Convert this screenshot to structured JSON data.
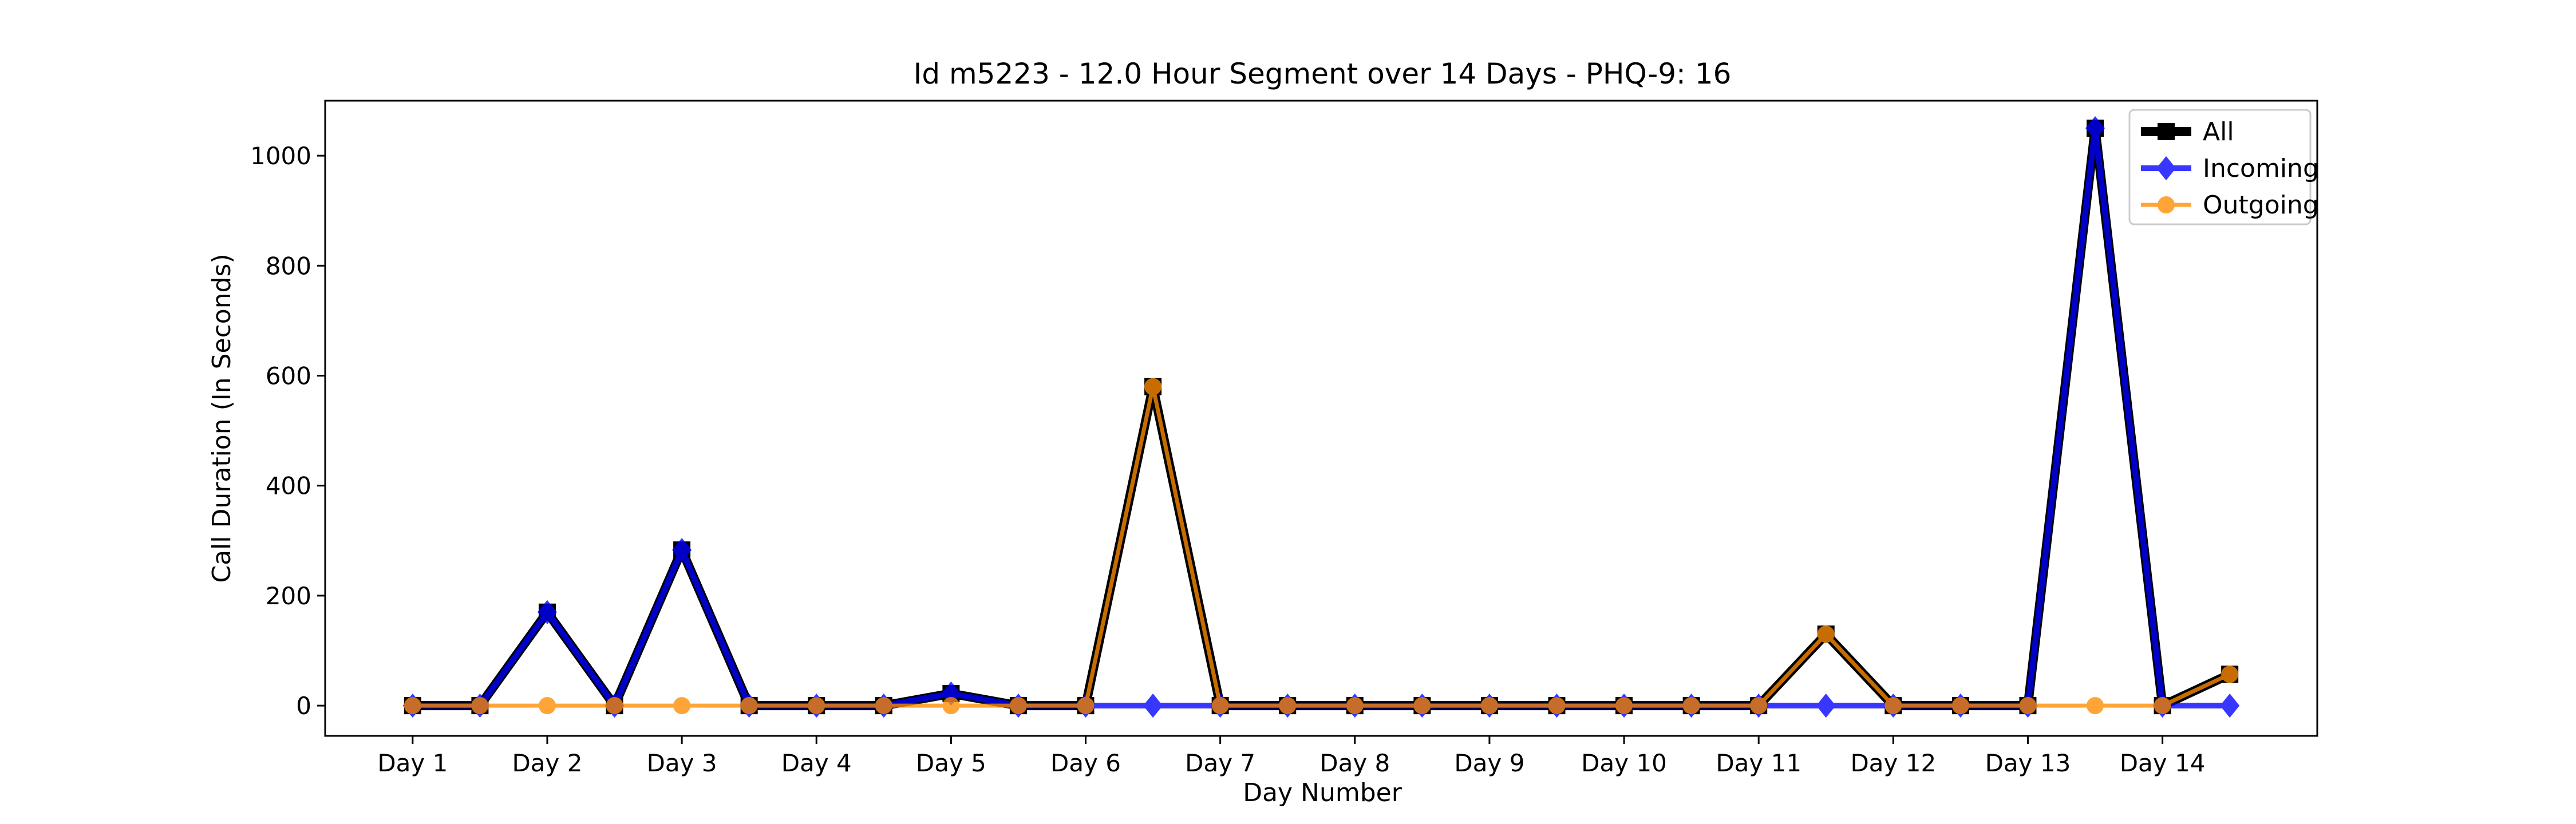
{
  "chart_data": {
    "type": "line",
    "title": "Id m5223 - 12.0 Hour Segment over 14 Days - PHQ-9: 16",
    "xlabel": "Day Number",
    "ylabel": "Call Duration (In Seconds)",
    "x_tick_labels": [
      "Day 1",
      "Day 2",
      "Day 3",
      "Day 4",
      "Day 5",
      "Day 6",
      "Day 7",
      "Day 8",
      "Day 9",
      "Day 10",
      "Day 11",
      "Day 12",
      "Day 13",
      "Day 14"
    ],
    "y_ticks": [
      0,
      200,
      400,
      600,
      800,
      1000
    ],
    "xlim": [
      0.35,
      15.15
    ],
    "ylim": [
      -55,
      1100
    ],
    "x": [
      1,
      1.5,
      2,
      2.5,
      3,
      3.5,
      4,
      4.5,
      5,
      5.5,
      6,
      6.5,
      7,
      7.5,
      8,
      8.5,
      9,
      9.5,
      10,
      10.5,
      11,
      11.5,
      12,
      12.5,
      13,
      13.5,
      14,
      14.5
    ],
    "grid": false,
    "legend_position": "top-right",
    "series": [
      {
        "name": "All",
        "color": "#000000",
        "marker": "square",
        "values": [
          0,
          0,
          170,
          0,
          283,
          0,
          0,
          0,
          22,
          0,
          0,
          580,
          0,
          0,
          0,
          0,
          0,
          0,
          0,
          0,
          0,
          130,
          0,
          0,
          0,
          1050,
          0,
          57
        ]
      },
      {
        "name": "Incoming",
        "color": "#0000ff",
        "marker": "diamond",
        "values": [
          0,
          0,
          170,
          0,
          283,
          0,
          0,
          0,
          22,
          0,
          0,
          0,
          0,
          0,
          0,
          0,
          0,
          0,
          0,
          0,
          0,
          0,
          0,
          0,
          0,
          1050,
          0,
          0
        ]
      },
      {
        "name": "Outgoing",
        "color": "#ff8c00",
        "marker": "circle",
        "values": [
          0,
          0,
          0,
          0,
          0,
          0,
          0,
          0,
          0,
          0,
          0,
          580,
          0,
          0,
          0,
          0,
          0,
          0,
          0,
          0,
          0,
          130,
          0,
          0,
          0,
          0,
          0,
          57
        ]
      }
    ]
  }
}
